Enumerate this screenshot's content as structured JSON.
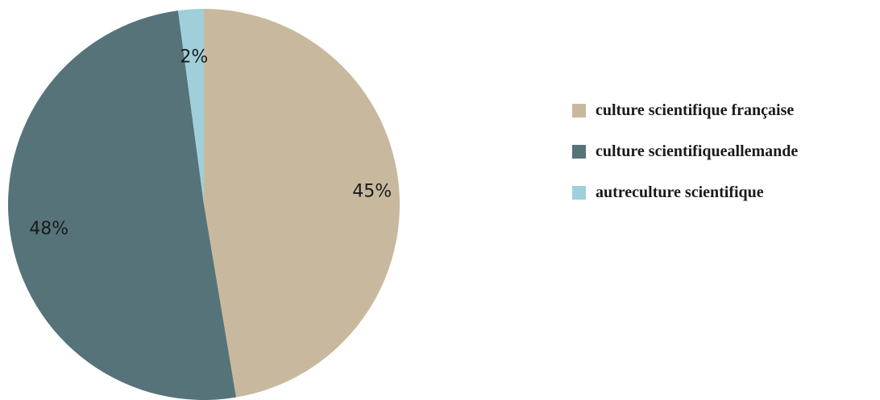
{
  "chart_data": {
    "type": "pie",
    "title": "",
    "slices": [
      {
        "label": "culture scientifique française",
        "value": 45,
        "display": "45%",
        "color": "#c8b99e"
      },
      {
        "label": "culture scientifiqueallemande",
        "value": 48,
        "display": "48%",
        "color": "#56737a"
      },
      {
        "label": "autreculture scientifique",
        "value": 2,
        "display": "2%",
        "color": "#9fcfda"
      }
    ],
    "legend_position": "right"
  }
}
